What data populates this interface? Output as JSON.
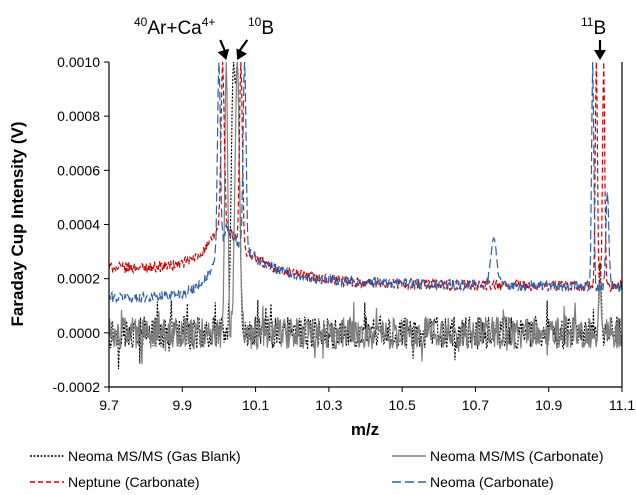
{
  "chart_data": {
    "type": "line",
    "title": "",
    "xlabel": "m/z",
    "ylabel": "Faraday Cup Intensity (V)",
    "xlim": [
      9.7,
      11.1
    ],
    "ylim": [
      -0.0002,
      0.001
    ],
    "x_ticks": [
      9.7,
      9.9,
      10.1,
      10.3,
      10.5,
      10.7,
      10.9,
      11.1
    ],
    "x_tick_labels": [
      "9.7",
      "9.9",
      "10.1",
      "10.3",
      "10.5",
      "10.7",
      "10.9",
      "11.1"
    ],
    "y_ticks": [
      -0.0002,
      0.0,
      0.0002,
      0.0004,
      0.0006,
      0.0008,
      0.001
    ],
    "y_tick_labels": [
      "-0.0002",
      "0.0000",
      "0.0002",
      "0.0004",
      "0.0006",
      "0.0008",
      "0.0010"
    ],
    "grid": false,
    "legend_position": "bottom",
    "annotations": [
      {
        "mass": "40",
        "text": "Ar+Ca",
        "charge": "4+",
        "x": 10.02
      },
      {
        "mass": "10",
        "text": "B",
        "charge": "",
        "x": 10.05
      },
      {
        "mass": "11",
        "text": "B",
        "charge": "",
        "x": 11.04
      }
    ],
    "series": [
      {
        "name": "Neoma MS/MS (Gas Blank)",
        "color": "#000000",
        "dash": "dotted",
        "baseline": 0.0,
        "noise": 6e-05,
        "peaks": [
          {
            "center": 10.04,
            "height": 0.001,
            "width": 0.006
          },
          {
            "center": 10.05,
            "height": 0.001,
            "width": 0.006
          },
          {
            "center": 11.04,
            "height": 0.00026,
            "width": 0.003
          }
        ]
      },
      {
        "name": "Neoma MS/MS (Carbonate)",
        "color": "#7f7f7f",
        "dash": "solid",
        "baseline": 0.0,
        "noise": 6e-05,
        "peaks": [
          {
            "center": 10.02,
            "height": 0.001,
            "width": 0.004
          },
          {
            "center": 10.05,
            "height": 0.001,
            "width": 0.006
          },
          {
            "center": 11.04,
            "height": 0.0002,
            "width": 0.003
          }
        ]
      },
      {
        "name": "Neptune (Carbonate)",
        "color": "#cc0000",
        "dash": "dashed",
        "baseline": 0.00017,
        "noise": 2e-05,
        "start_level": 0.00024,
        "peaks": [
          {
            "center": 10.01,
            "height": 0.001,
            "width": 0.004
          },
          {
            "center": 10.06,
            "height": 0.001,
            "width": 0.004
          },
          {
            "center": 11.03,
            "height": 0.001,
            "width": 0.003
          },
          {
            "center": 11.05,
            "height": 0.001,
            "width": 0.003
          }
        ]
      },
      {
        "name": "Neoma (Carbonate)",
        "color": "#2e5fa8",
        "dash": "longdash",
        "baseline": 0.00017,
        "noise": 2e-05,
        "start_level": 0.00013,
        "peaks": [
          {
            "center": 10.0,
            "height": 0.001,
            "width": 0.004
          },
          {
            "center": 10.07,
            "height": 0.001,
            "width": 0.004
          },
          {
            "center": 10.75,
            "height": 0.00035,
            "width": 0.008
          },
          {
            "center": 11.02,
            "height": 0.001,
            "width": 0.003
          },
          {
            "center": 11.06,
            "height": 0.00052,
            "width": 0.004
          }
        ]
      }
    ]
  }
}
